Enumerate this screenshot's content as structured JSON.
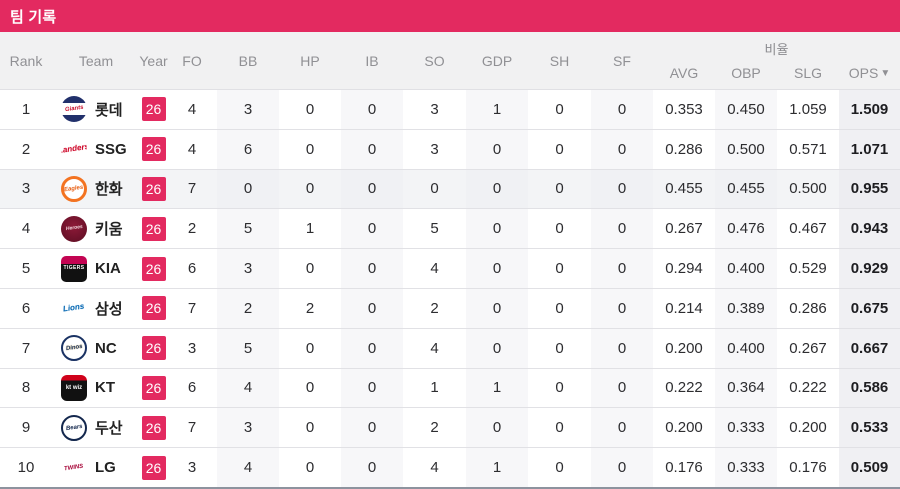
{
  "title_bar": {
    "title": "팀 기록"
  },
  "colors": {
    "accent": "#e32a60",
    "header_bg": "#f1f1f2",
    "column_stripe": "#f7f7f9",
    "ops_column_bg": "#f0f0f3",
    "highlight_row_bg": "#f3f4f6",
    "bottom_border": "#8d939e"
  },
  "table": {
    "rate_group_label": "비율",
    "sort_indicator": "▼",
    "sorted_by": "OPS",
    "headers": {
      "rank": "Rank",
      "team": "Team",
      "year": "Year",
      "fo": "FO",
      "bb": "BB",
      "hp": "HP",
      "ib": "IB",
      "so": "SO",
      "gdp": "GDP",
      "sh": "SH",
      "sf": "SF",
      "avg": "AVG",
      "obp": "OBP",
      "slg": "SLG",
      "ops": "OPS"
    },
    "rows": [
      {
        "rank": "1",
        "team": "롯데",
        "logo": "lotte-giants",
        "logo_text": "Giants",
        "year": "26",
        "fo": "4",
        "bb": "3",
        "hp": "0",
        "ib": "0",
        "so": "3",
        "gdp": "1",
        "sh": "0",
        "sf": "0",
        "avg": "0.353",
        "obp": "0.450",
        "slg": "1.059",
        "ops": "1.509",
        "highlighted": false
      },
      {
        "rank": "2",
        "team": "SSG",
        "logo": "ssg-landers",
        "logo_text": "Landers",
        "year": "26",
        "fo": "4",
        "bb": "6",
        "hp": "0",
        "ib": "0",
        "so": "3",
        "gdp": "0",
        "sh": "0",
        "sf": "0",
        "avg": "0.286",
        "obp": "0.500",
        "slg": "0.571",
        "ops": "1.071",
        "highlighted": false
      },
      {
        "rank": "3",
        "team": "한화",
        "logo": "hanwha-eagles",
        "logo_text": "Eagles",
        "year": "26",
        "fo": "7",
        "bb": "0",
        "hp": "0",
        "ib": "0",
        "so": "0",
        "gdp": "0",
        "sh": "0",
        "sf": "0",
        "avg": "0.455",
        "obp": "0.455",
        "slg": "0.500",
        "ops": "0.955",
        "highlighted": true
      },
      {
        "rank": "4",
        "team": "키움",
        "logo": "kiwoom-heroes",
        "logo_text": "Heroes",
        "year": "26",
        "fo": "2",
        "bb": "5",
        "hp": "1",
        "ib": "0",
        "so": "5",
        "gdp": "0",
        "sh": "0",
        "sf": "0",
        "avg": "0.267",
        "obp": "0.476",
        "slg": "0.467",
        "ops": "0.943",
        "highlighted": false
      },
      {
        "rank": "5",
        "team": "KIA",
        "logo": "kia-tigers",
        "logo_text": "TIGERS",
        "year": "26",
        "fo": "6",
        "bb": "3",
        "hp": "0",
        "ib": "0",
        "so": "4",
        "gdp": "0",
        "sh": "0",
        "sf": "0",
        "avg": "0.294",
        "obp": "0.400",
        "slg": "0.529",
        "ops": "0.929",
        "highlighted": false
      },
      {
        "rank": "6",
        "team": "삼성",
        "logo": "samsung-lions",
        "logo_text": "Lions",
        "year": "26",
        "fo": "7",
        "bb": "2",
        "hp": "2",
        "ib": "0",
        "so": "2",
        "gdp": "0",
        "sh": "0",
        "sf": "0",
        "avg": "0.214",
        "obp": "0.389",
        "slg": "0.286",
        "ops": "0.675",
        "highlighted": false
      },
      {
        "rank": "7",
        "team": "NC",
        "logo": "nc-dinos",
        "logo_text": "Dinos",
        "year": "26",
        "fo": "3",
        "bb": "5",
        "hp": "0",
        "ib": "0",
        "so": "4",
        "gdp": "0",
        "sh": "0",
        "sf": "0",
        "avg": "0.200",
        "obp": "0.400",
        "slg": "0.267",
        "ops": "0.667",
        "highlighted": false
      },
      {
        "rank": "8",
        "team": "KT",
        "logo": "kt-wiz",
        "logo_text": "kt wiz",
        "year": "26",
        "fo": "6",
        "bb": "4",
        "hp": "0",
        "ib": "0",
        "so": "1",
        "gdp": "1",
        "sh": "0",
        "sf": "0",
        "avg": "0.222",
        "obp": "0.364",
        "slg": "0.222",
        "ops": "0.586",
        "highlighted": false
      },
      {
        "rank": "9",
        "team": "두산",
        "logo": "doosan-bears",
        "logo_text": "Bears",
        "year": "26",
        "fo": "7",
        "bb": "3",
        "hp": "0",
        "ib": "0",
        "so": "2",
        "gdp": "0",
        "sh": "0",
        "sf": "0",
        "avg": "0.200",
        "obp": "0.333",
        "slg": "0.200",
        "ops": "0.533",
        "highlighted": false
      },
      {
        "rank": "10",
        "team": "LG",
        "logo": "lg-twins",
        "logo_text": "TWINS",
        "year": "26",
        "fo": "3",
        "bb": "4",
        "hp": "0",
        "ib": "0",
        "so": "4",
        "gdp": "1",
        "sh": "0",
        "sf": "0",
        "avg": "0.176",
        "obp": "0.333",
        "slg": "0.176",
        "ops": "0.509",
        "highlighted": false
      }
    ]
  }
}
